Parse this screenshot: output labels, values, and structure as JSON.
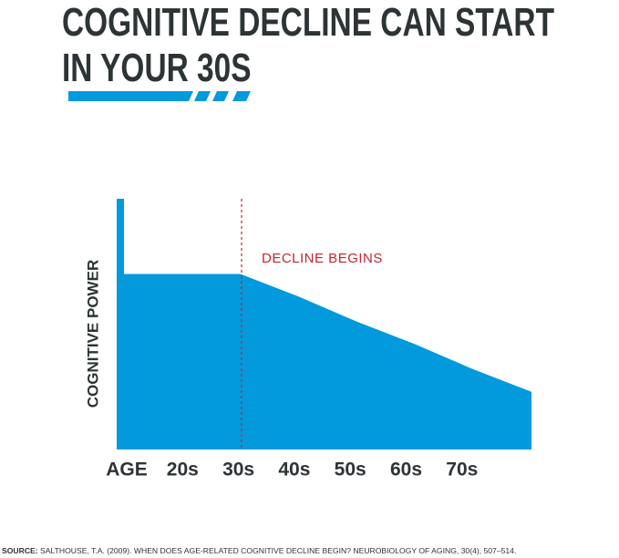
{
  "chart_data": {
    "type": "area",
    "title": "COGNITIVE DECLINE CAN START IN YOUR 30S",
    "y_label": "COGNITIVE POWER",
    "annotation": "DECLINE BEGINS",
    "categories": [
      "AGE",
      "20s",
      "30s",
      "40s",
      "50s",
      "60s",
      "70s",
      null
    ],
    "values": [
      70,
      70,
      70,
      61,
      51,
      42,
      32,
      23
    ],
    "ylim": [
      0,
      100
    ],
    "color": "#0299dd",
    "annotation_color": "#c4262e",
    "source_label": "SOURCE:",
    "source": "SALTHOUSE, T.A. (2009). WHEN DOES AGE-RELATED COGNITIVE DECLINE BEGIN? NEUROBIOLOGY OF AGING, 30(4), 507–514."
  }
}
